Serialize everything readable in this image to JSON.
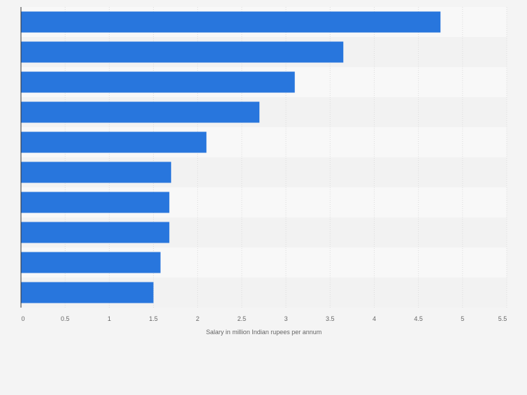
{
  "chart_data": {
    "type": "bar",
    "orientation": "horizontal",
    "categories": [
      "",
      "",
      "",
      "",
      "",
      "",
      "",
      "",
      "",
      ""
    ],
    "values": [
      4.75,
      3.65,
      3.1,
      2.7,
      2.1,
      1.7,
      1.68,
      1.68,
      1.58,
      1.5
    ],
    "title": "",
    "xlabel": "Salary in million Indian rupees per annum",
    "ylabel": "",
    "xlim": [
      0,
      5.5
    ],
    "xticks": [
      "0",
      "0.5",
      "1",
      "1.5",
      "2",
      "2.5",
      "3",
      "3.5",
      "4",
      "4.5",
      "5",
      "5.5"
    ],
    "grid": true,
    "legend": "none"
  },
  "colors": {
    "bar": "#2876dd",
    "background": "#f4f4f4",
    "band_light": "#f8f8f8",
    "band_dark": "#f2f2f2",
    "grid": "#dcdcdc",
    "axis": "#333333",
    "tick_text": "#666666"
  }
}
